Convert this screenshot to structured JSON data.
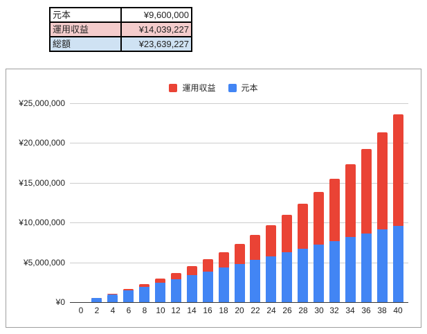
{
  "summary": {
    "rows": [
      {
        "label": "元本",
        "value": "¥9,600,000"
      },
      {
        "label": "運用収益",
        "value": "¥14,039,227"
      },
      {
        "label": "総額",
        "value": "¥23,639,227"
      }
    ]
  },
  "colors": {
    "gain": "#ea4335",
    "principal": "#4285f4",
    "gain_row_bg": "#f4cccc",
    "total_row_bg": "#cfe2f3"
  },
  "chart_data": {
    "type": "bar",
    "stacked": true,
    "title": "",
    "xlabel": "",
    "ylabel": "",
    "legend_position": "top",
    "grid": true,
    "ylim": [
      0,
      25000000
    ],
    "yticks": [
      0,
      5000000,
      10000000,
      15000000,
      20000000,
      25000000
    ],
    "ytick_labels": [
      "¥0",
      "¥5,000,000",
      "¥10,000,000",
      "¥15,000,000",
      "¥20,000,000",
      "¥25,000,000"
    ],
    "categories": [
      "0",
      "2",
      "4",
      "6",
      "8",
      "10",
      "12",
      "14",
      "16",
      "18",
      "20",
      "22",
      "24",
      "26",
      "28",
      "30",
      "32",
      "34",
      "36",
      "38",
      "40"
    ],
    "series": [
      {
        "name": "元本",
        "color": "#4285f4",
        "values": [
          0,
          480000,
          960000,
          1440000,
          1920000,
          2400000,
          2880000,
          3360000,
          3840000,
          4320000,
          4800000,
          5280000,
          5760000,
          6240000,
          6720000,
          7200000,
          7680000,
          8160000,
          8640000,
          9120000,
          9600000
        ]
      },
      {
        "name": "運用収益",
        "color": "#ea4335",
        "values": [
          0,
          18860,
          79194,
          184452,
          338394,
          544996,
          808690,
          1134222,
          1526712,
          1991760,
          2535494,
          3164364,
          3885432,
          4706388,
          5635530,
          6681858,
          7855140,
          9165882,
          10625448,
          12246264,
          14039227
        ]
      }
    ],
    "legend": [
      "運用収益",
      "元本"
    ]
  }
}
